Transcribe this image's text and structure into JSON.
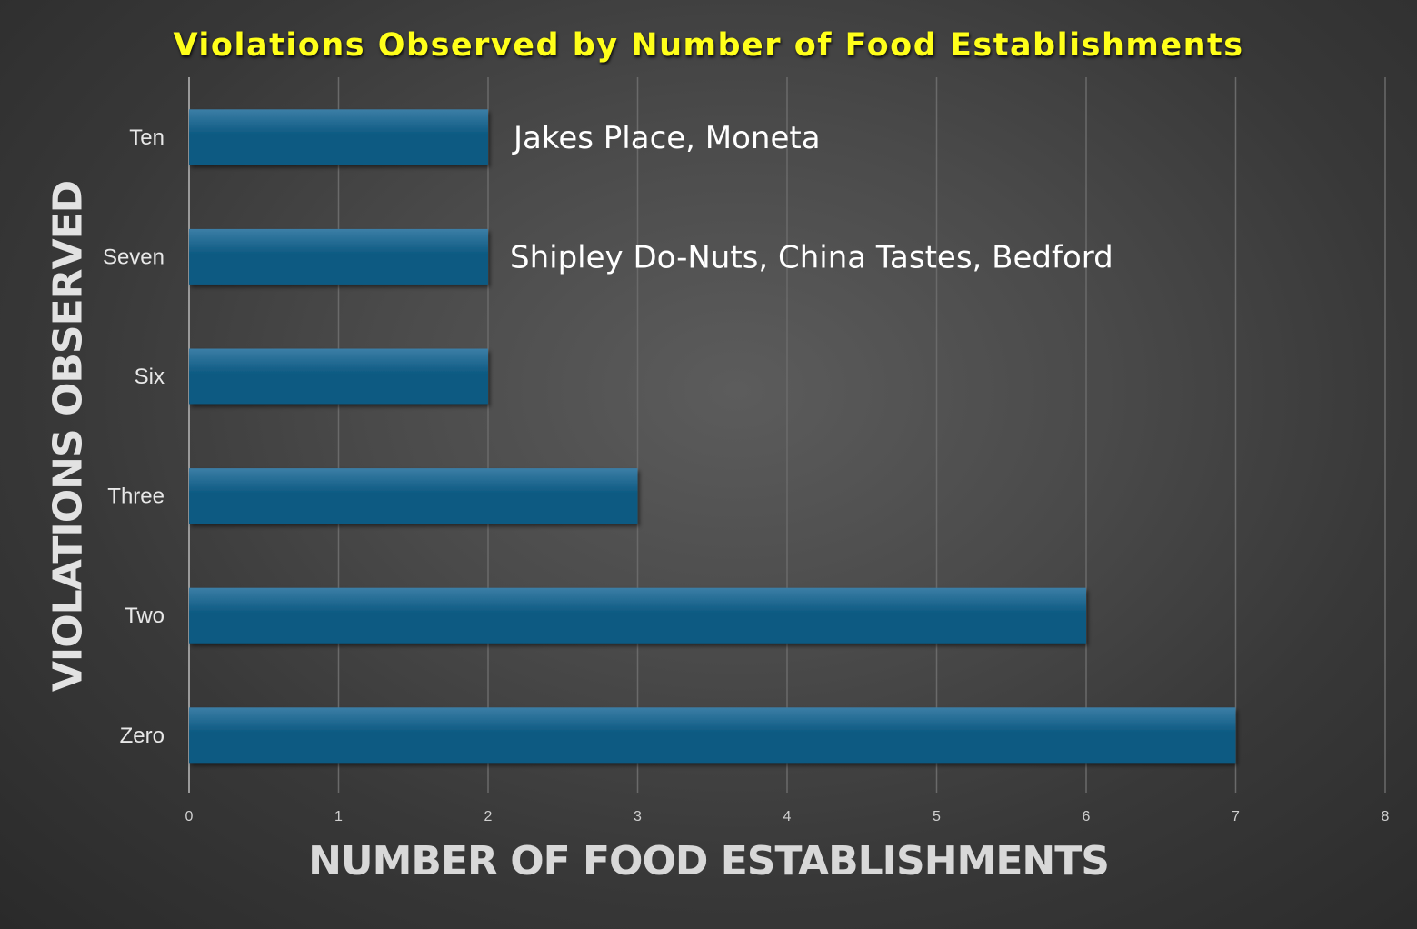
{
  "chart_data": {
    "type": "bar",
    "orientation": "horizontal",
    "title": "Violations Observed by Number of Food Establishments",
    "xlabel": "NUMBER OF FOOD ESTABLISHMENTS",
    "ylabel": "VIOLATIONS OBSERVED",
    "categories": [
      "Ten",
      "Seven",
      "Six",
      "Three",
      "Two",
      "Zero"
    ],
    "values": [
      2,
      2,
      2,
      3,
      6,
      7
    ],
    "xlim": [
      0,
      8
    ],
    "xticks": [
      "0",
      "1",
      "2",
      "3",
      "4",
      "5",
      "6",
      "7",
      "8"
    ],
    "grid": "vertical",
    "annotations": [
      {
        "category": "Ten",
        "text": "Jakes Place, Moneta"
      },
      {
        "category": "Seven",
        "text": "Shipley Do-Nuts, China Tastes, Bedford"
      }
    ],
    "colors": {
      "title": "#ffff1a",
      "bar_top": "#3c7ea6",
      "bar_bottom": "#0d5a82",
      "background": "#4a4a4a",
      "gridline": "#6a6a6a"
    }
  }
}
